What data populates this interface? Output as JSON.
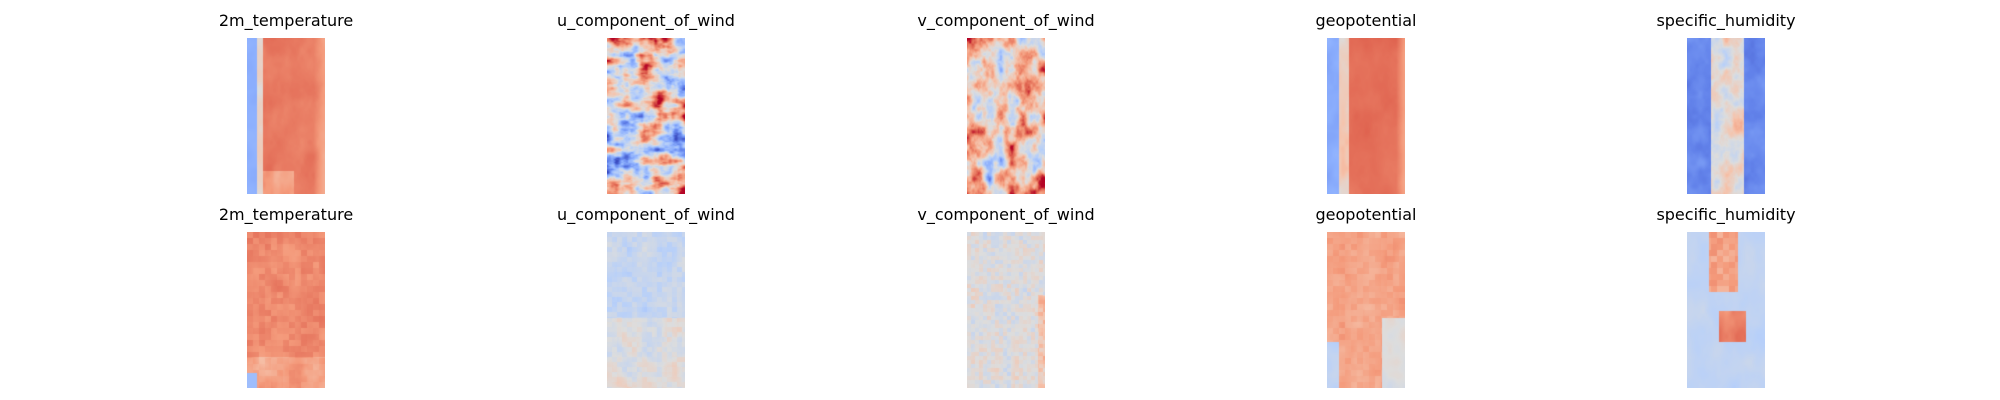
{
  "chart_data": {
    "type": "heatmap",
    "colormap": "coolwarm",
    "grid": false,
    "axes_visible": false,
    "rows": 2,
    "cols": 5,
    "panels": [
      {
        "title": "2m_temperature",
        "row": 0,
        "style": "temp_band"
      },
      {
        "title": "u_component_of_wind",
        "row": 0,
        "style": "wind_streaks"
      },
      {
        "title": "v_component_of_wind",
        "row": 0,
        "style": "wind_warm_noise"
      },
      {
        "title": "geopotential",
        "row": 0,
        "style": "geo_band"
      },
      {
        "title": "specific_humidity",
        "row": 0,
        "style": "humidity_band"
      },
      {
        "title": "2m_temperature",
        "row": 1,
        "style": "temp_warm_blocks"
      },
      {
        "title": "u_component_of_wind",
        "row": 1,
        "style": "wind_faint_blocks"
      },
      {
        "title": "v_component_of_wind",
        "row": 1,
        "style": "wind_faint_noise"
      },
      {
        "title": "geopotential",
        "row": 1,
        "style": "geo_warm_blocks"
      },
      {
        "title": "specific_humidity",
        "row": 1,
        "style": "humidity_blocks"
      }
    ]
  }
}
